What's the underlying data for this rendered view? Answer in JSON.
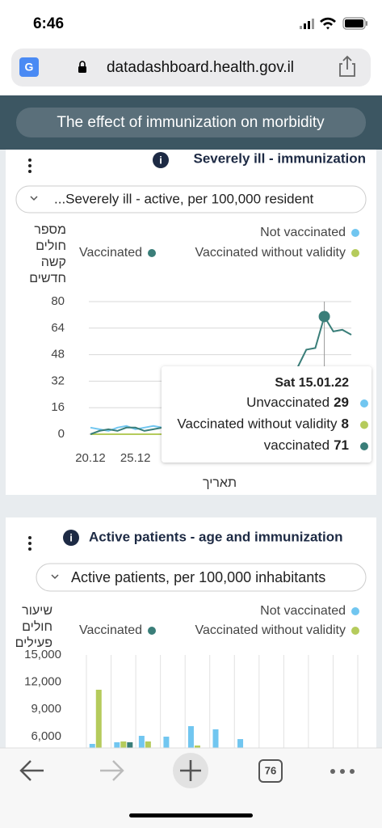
{
  "status_bar": {
    "time": "6:46"
  },
  "browser": {
    "url": "datadashboard.health.gov.il",
    "tabs": "76"
  },
  "header": {
    "title": "The effect of immunization on morbidity"
  },
  "chart_data": [
    {
      "type": "line",
      "title": "Severely ill - immunization",
      "subtitle": "...Severely ill - active, per 100,000 resident",
      "y_label": [
        "מספר",
        "חולים",
        "קשה",
        "חדשים"
      ],
      "x_label": "תאריך",
      "categories": [
        "20.12",
        null,
        null,
        null,
        null,
        "25.12",
        null,
        null,
        null,
        null,
        null,
        null,
        null,
        null,
        null,
        null,
        null,
        null,
        null,
        null,
        null,
        null,
        null,
        null,
        null,
        null,
        null,
        null,
        null,
        null
      ],
      "series": [
        {
          "name": "Not vaccinated",
          "color": "#71c6f0",
          "values": [
            4,
            3,
            2,
            4,
            5,
            3,
            4,
            5,
            4,
            6,
            5,
            6,
            7,
            8,
            9,
            10,
            11,
            12,
            13,
            15,
            17,
            19,
            21,
            24,
            26,
            27,
            29,
            28,
            27,
            26
          ]
        },
        {
          "name": "Vaccinated without validity",
          "color": "#b5cb5c",
          "values": [
            0,
            0,
            0,
            0,
            0,
            0,
            0,
            0,
            0,
            0,
            1,
            1,
            1,
            2,
            2,
            2,
            3,
            3,
            3,
            4,
            4,
            5,
            5,
            6,
            7,
            7,
            8,
            8,
            7,
            7
          ]
        },
        {
          "name": "Vaccinated",
          "color": "#3a7e79",
          "values": [
            0,
            2,
            3,
            2,
            4,
            4,
            2,
            3,
            4,
            5,
            6,
            5,
            6,
            7,
            8,
            9,
            10,
            12,
            14,
            17,
            21,
            26,
            31,
            40,
            51,
            52,
            71,
            62,
            63,
            60
          ]
        }
      ],
      "ylim": [
        0,
        80
      ],
      "yticks": [
        0,
        16,
        32,
        48,
        64,
        80
      ],
      "grid": true,
      "tooltip": {
        "title": "Sat 15.01.22",
        "rows": [
          {
            "label": "Unvaccinated",
            "value": 29
          },
          {
            "label": "Vaccinated without validity",
            "value": 8
          },
          {
            "label": "vaccinated",
            "value": 71
          }
        ]
      }
    },
    {
      "type": "bar",
      "title": "Active patients - age and immunization",
      "subtitle": "Active patients, per 100,000 inhabitants",
      "y_label": [
        "שיעור",
        "חולים",
        "פעילים"
      ],
      "categories": [
        null,
        null,
        null,
        null,
        null,
        null,
        null,
        null,
        null,
        null,
        null
      ],
      "series": [
        {
          "name": "Not vaccinated",
          "color": "#71c6f0",
          "values": [
            5180,
            5360,
            6070,
            5980,
            7140,
            6790,
            5710,
            4200,
            3500,
            2800,
            2200
          ]
        },
        {
          "name": "Vaccinated without validity",
          "color": "#b5cb5c",
          "values": [
            11160,
            5450,
            5450,
            3000,
            5000,
            2500,
            2000,
            1800,
            1500,
            1200,
            900
          ]
        },
        {
          "name": "Vaccinated",
          "color": "#3a7e79",
          "values": [
            3000,
            5360,
            4000,
            3500,
            3000,
            2500,
            2000,
            1500,
            1200,
            1000,
            800
          ]
        }
      ],
      "ylim": [
        0,
        15000
      ],
      "yticks": [
        {
          "value": 6000,
          "label": "6,000"
        },
        {
          "value": 9000,
          "label": "9,000"
        },
        {
          "value": 12000,
          "label": "12,000"
        },
        {
          "value": 15000,
          "label": "15,000"
        }
      ],
      "grid": true
    }
  ]
}
